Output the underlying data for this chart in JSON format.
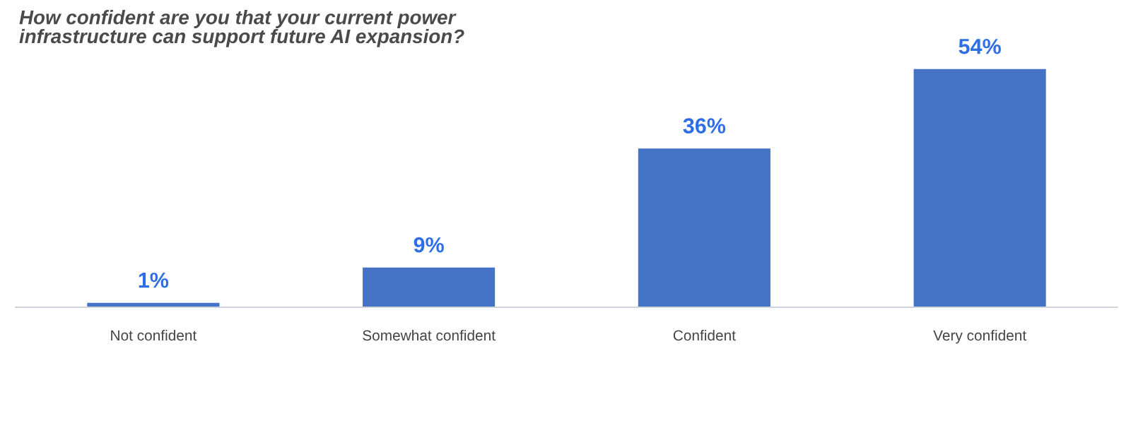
{
  "chart_data": {
    "type": "bar",
    "title": "How confident are you that your current power\ninfrastructure can support future AI expansion?",
    "categories": [
      "Not confident",
      "Somewhat confident",
      "Confident",
      "Very confident"
    ],
    "values": [
      1,
      9,
      36,
      54
    ],
    "value_labels": [
      "1%",
      "9%",
      "36%",
      "54%"
    ],
    "color": "#4472c4",
    "tick_labels": "x"
  }
}
